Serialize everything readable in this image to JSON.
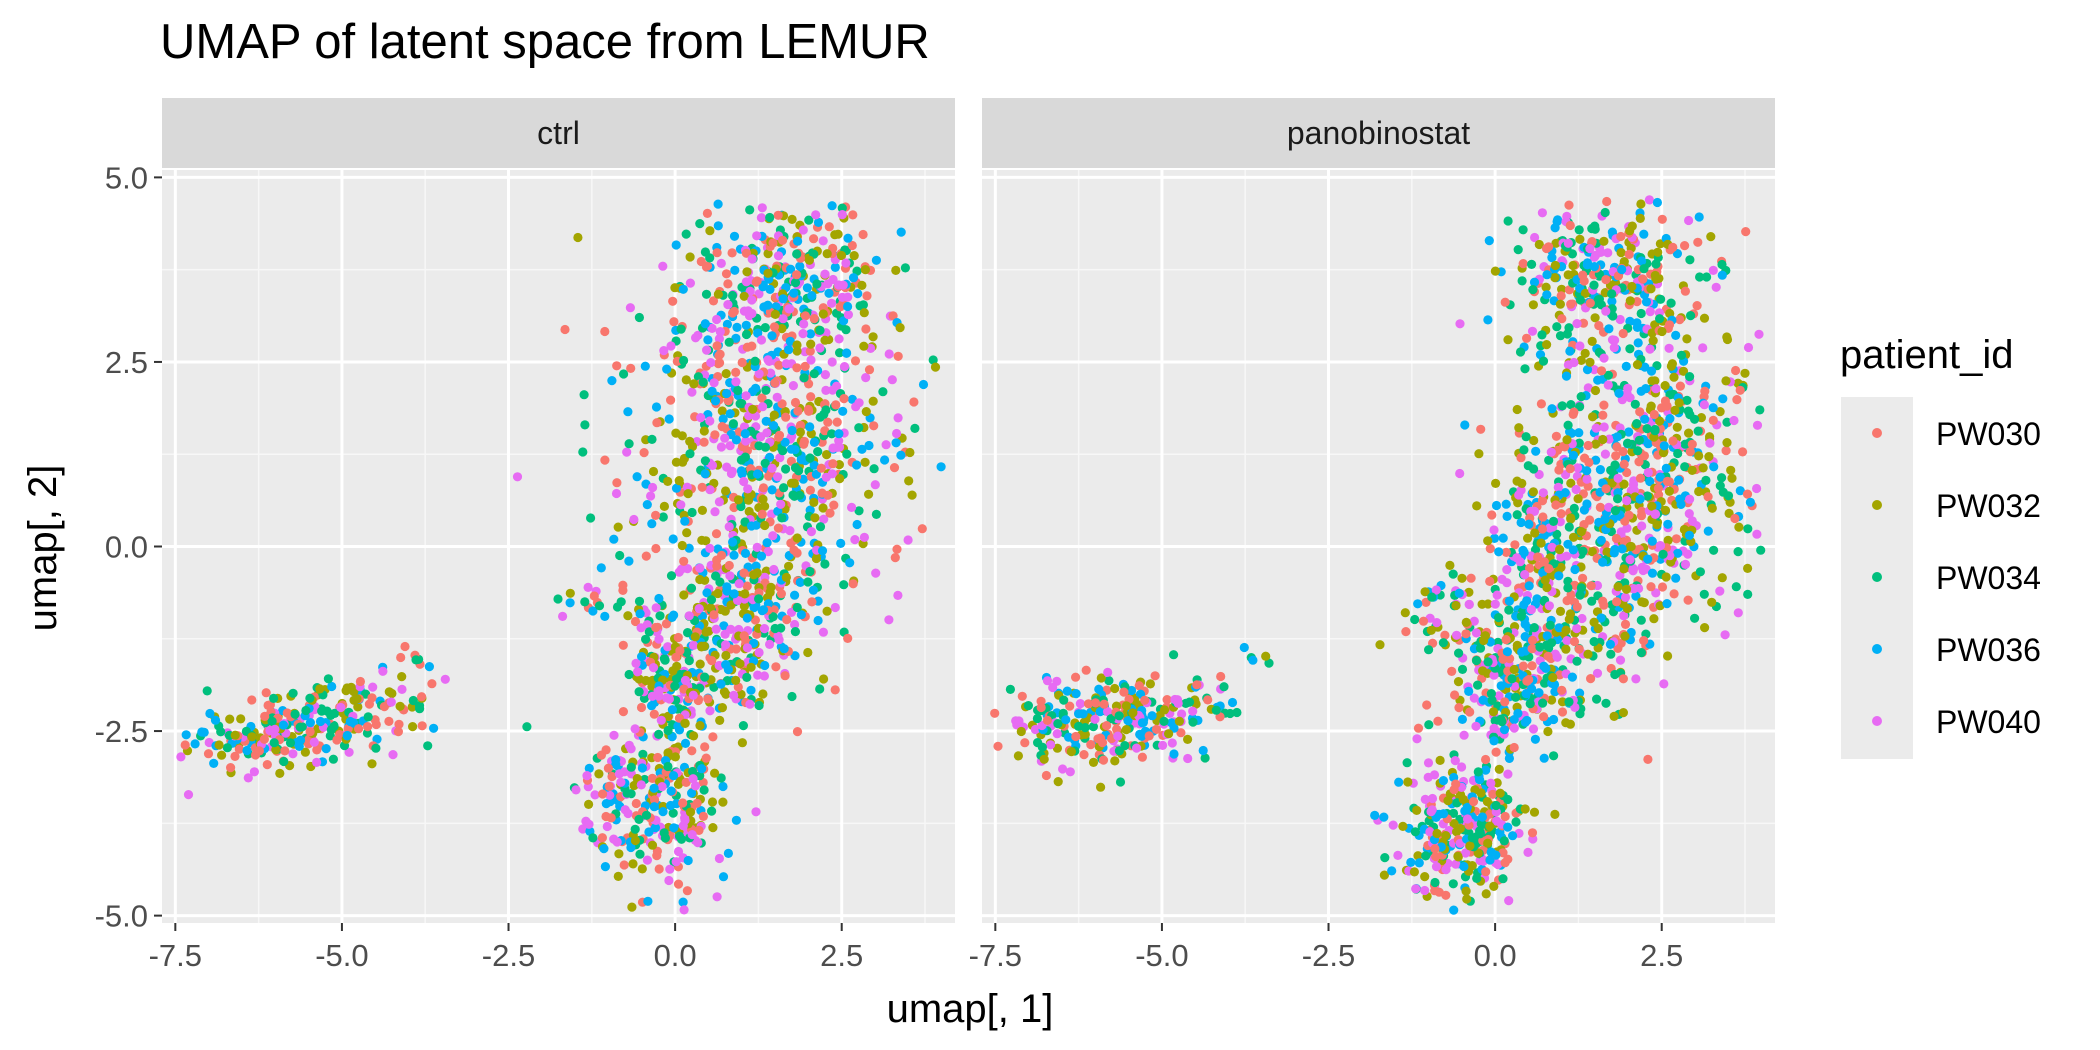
{
  "chart_data": {
    "type": "scatter",
    "title": "UMAP of latent space from LEMUR",
    "xlabel": "umap[, 1]",
    "ylabel": "umap[, 2]",
    "xlim": [
      -7.7,
      4.2
    ],
    "ylim": [
      -5.1,
      5.1
    ],
    "x_ticks": [
      -7.5,
      -5.0,
      -2.5,
      0.0,
      2.5
    ],
    "x_tick_labels": [
      "-7.5",
      "-5.0",
      "-2.5",
      "0.0",
      "2.5"
    ],
    "y_ticks": [
      -5.0,
      -2.5,
      0.0,
      2.5,
      5.0
    ],
    "y_tick_labels": [
      "-5.0",
      "-2.5",
      "0.0",
      "2.5",
      "5.0"
    ],
    "grid": true,
    "legend": {
      "title": "patient_id",
      "placement": "right",
      "items": [
        {
          "label": "PW030",
          "color": "#F8766D"
        },
        {
          "label": "PW032",
          "color": "#A3A500"
        },
        {
          "label": "PW034",
          "color": "#00BF7D"
        },
        {
          "label": "PW036",
          "color": "#00B0F6"
        },
        {
          "label": "PW040",
          "color": "#E76BF3"
        }
      ]
    },
    "facets": [
      {
        "label": "ctrl",
        "clusters": [
          {
            "cx": -5.8,
            "cy": -2.45,
            "sx": 0.75,
            "sy": 0.25,
            "rot": 0.12,
            "n": 230
          },
          {
            "cx": -4.4,
            "cy": -2.2,
            "sx": 0.35,
            "sy": 0.2,
            "rot": 0.3,
            "n": 40
          },
          {
            "cx": -3.8,
            "cy": -1.5,
            "sx": 0.2,
            "sy": 0.08,
            "rot": 0.0,
            "n": 6
          },
          {
            "cx": 1.6,
            "cy": 3.5,
            "sx": 0.75,
            "sy": 0.6,
            "rot": 0.2,
            "n": 330
          },
          {
            "cx": 1.4,
            "cy": 1.3,
            "sx": 1.1,
            "sy": 1.05,
            "rot": 0.35,
            "n": 620
          },
          {
            "cx": 0.9,
            "cy": -0.9,
            "sx": 0.7,
            "sy": 0.55,
            "rot": 0.5,
            "n": 300
          },
          {
            "cx": 0.0,
            "cy": -1.9,
            "sx": 0.35,
            "sy": 0.45,
            "rot": 0.4,
            "n": 160
          },
          {
            "cx": -0.3,
            "cy": -3.5,
            "sx": 0.5,
            "sy": 0.55,
            "rot": 0.6,
            "n": 260
          },
          {
            "cx": -1.2,
            "cy": -0.8,
            "sx": 0.25,
            "sy": 0.12,
            "rot": 0.0,
            "n": 14
          }
        ],
        "points_total": 1960
      },
      {
        "label": "panobinostat",
        "clusters": [
          {
            "cx": -5.8,
            "cy": -2.35,
            "sx": 0.75,
            "sy": 0.3,
            "rot": 0.15,
            "n": 260
          },
          {
            "cx": -4.3,
            "cy": -2.1,
            "sx": 0.3,
            "sy": 0.2,
            "rot": 0.2,
            "n": 20
          },
          {
            "cx": -3.7,
            "cy": -1.4,
            "sx": 0.15,
            "sy": 0.08,
            "rot": 0.0,
            "n": 5
          },
          {
            "cx": 1.6,
            "cy": 3.6,
            "sx": 0.75,
            "sy": 0.55,
            "rot": 0.15,
            "n": 330
          },
          {
            "cx": 2.2,
            "cy": 1.2,
            "sx": 1.0,
            "sy": 0.9,
            "rot": 0.3,
            "n": 520
          },
          {
            "cx": 1.3,
            "cy": -0.4,
            "sx": 0.95,
            "sy": 0.8,
            "rot": 0.5,
            "n": 420
          },
          {
            "cx": 0.3,
            "cy": -1.8,
            "sx": 0.6,
            "sy": 0.55,
            "rot": 0.5,
            "n": 260
          },
          {
            "cx": -0.5,
            "cy": -3.9,
            "sx": 0.45,
            "sy": 0.45,
            "rot": 0.6,
            "n": 300
          },
          {
            "cx": -0.8,
            "cy": -0.9,
            "sx": 0.3,
            "sy": 0.25,
            "rot": 0.0,
            "n": 30
          }
        ],
        "points_total": 2145
      }
    ]
  }
}
